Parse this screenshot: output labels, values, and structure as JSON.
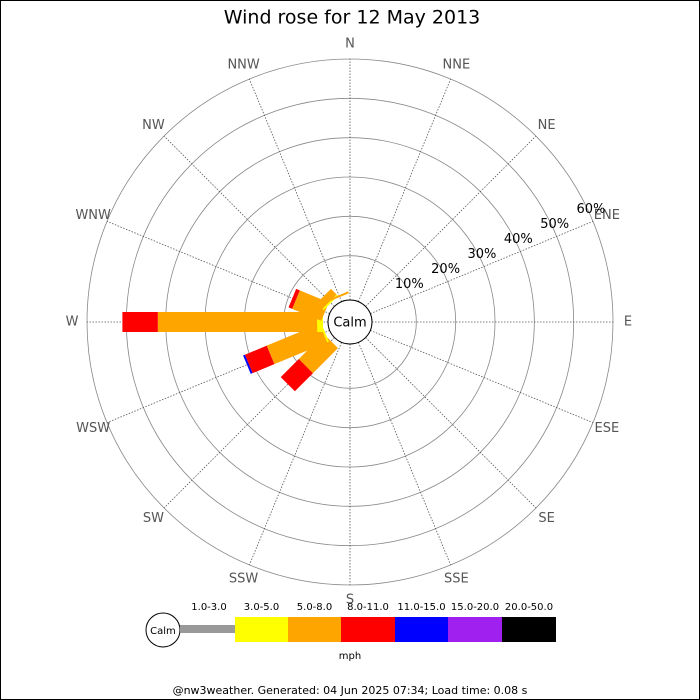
{
  "chart_data": {
    "type": "windrose",
    "title": "Wind rose for 12 May 2013",
    "directions": [
      "N",
      "NNE",
      "NE",
      "ENE",
      "E",
      "ESE",
      "SE",
      "SSE",
      "S",
      "SSW",
      "SW",
      "WSW",
      "W",
      "WNW",
      "NW",
      "NNW"
    ],
    "rlim": [
      0,
      60
    ],
    "rticks": [
      {
        "value": 10,
        "label": "10%"
      },
      {
        "value": 20,
        "label": "20%"
      },
      {
        "value": 30,
        "label": "30%"
      },
      {
        "value": 40,
        "label": "40%"
      },
      {
        "value": 50,
        "label": "50%"
      },
      {
        "value": 60,
        "label": "60%"
      }
    ],
    "calm_label": "Calm",
    "unit": "mph",
    "series": [
      {
        "name": "1.0-3.0",
        "color": "#999999",
        "values": [
          0,
          0,
          0,
          0,
          0,
          0,
          0,
          0,
          0,
          0,
          0,
          0,
          0,
          0,
          0,
          0
        ]
      },
      {
        "name": "3.0-5.0",
        "color": "#ffff00",
        "values": [
          0,
          0,
          0,
          0,
          0,
          0,
          0,
          0,
          0,
          0,
          0,
          0.5,
          1.5,
          0,
          0.5,
          0
        ]
      },
      {
        "name": "5.0-8.0",
        "color": "#ffa500",
        "values": [
          0,
          0,
          0,
          0,
          0,
          0,
          0,
          0,
          0,
          0,
          9,
          14.5,
          40.5,
          8,
          2,
          0.5
        ]
      },
      {
        "name": "8.0-11.0",
        "color": "#ff0000",
        "values": [
          0,
          0,
          0,
          0,
          0,
          0,
          0,
          0,
          0,
          0,
          6.5,
          6,
          9,
          1,
          0,
          0
        ]
      },
      {
        "name": "11.0-15.0",
        "color": "#0000ff",
        "values": [
          0,
          0,
          0,
          0,
          0,
          0,
          0,
          0,
          0,
          0,
          0,
          0.5,
          0,
          0,
          0,
          0
        ]
      },
      {
        "name": "15.0-20.0",
        "color": "#a020f0",
        "values": [
          0,
          0,
          0,
          0,
          0,
          0,
          0,
          0,
          0,
          0,
          0,
          0,
          0,
          0,
          0,
          0
        ]
      },
      {
        "name": "20.0-50.0",
        "color": "#000000",
        "values": [
          0,
          0,
          0,
          0,
          0,
          0,
          0,
          0,
          0,
          0,
          0,
          0,
          0,
          0,
          0,
          0
        ]
      }
    ],
    "footer": "@nw3weather. Generated: 04 Jun 2025 07:34; Load time: 0.08 s"
  }
}
